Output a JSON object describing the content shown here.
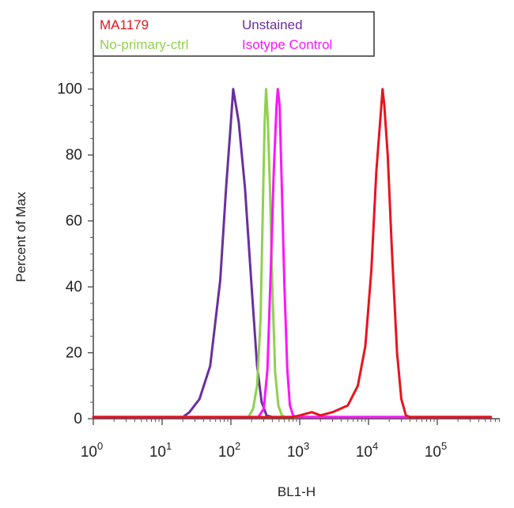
{
  "chart_data": {
    "type": "line",
    "title": "",
    "xlabel": "BL1-H",
    "ylabel": "Percent of Max",
    "x_scale": "log",
    "xlim": [
      1,
      600000
    ],
    "ylim": [
      0,
      110
    ],
    "x_ticks": [
      {
        "value": 1,
        "base": "10",
        "exp": "0"
      },
      {
        "value": 10,
        "base": "10",
        "exp": "1"
      },
      {
        "value": 100,
        "base": "10",
        "exp": "2"
      },
      {
        "value": 1000,
        "base": "10",
        "exp": "3"
      },
      {
        "value": 10000,
        "base": "10",
        "exp": "4"
      },
      {
        "value": 100000,
        "base": "10",
        "exp": "5"
      }
    ],
    "y_ticks": [
      0,
      20,
      40,
      60,
      80,
      100
    ],
    "grid": false,
    "legend_position": "top-left",
    "series": [
      {
        "name": "Unstained",
        "color": "#6a2fa0",
        "points": [
          [
            1,
            0.5
          ],
          [
            20,
            0.5
          ],
          [
            25,
            2
          ],
          [
            35,
            6
          ],
          [
            50,
            16
          ],
          [
            70,
            42
          ],
          [
            85,
            70
          ],
          [
            100,
            90
          ],
          [
            108,
            100
          ],
          [
            130,
            90
          ],
          [
            160,
            70
          ],
          [
            200,
            40
          ],
          [
            240,
            16
          ],
          [
            280,
            5
          ],
          [
            330,
            1
          ],
          [
            400,
            0.5
          ],
          [
            600000,
            0.5
          ]
        ]
      },
      {
        "name": "No-primary-ctrl",
        "color": "#8fd14f",
        "points": [
          [
            1,
            0.5
          ],
          [
            180,
            0.5
          ],
          [
            210,
            3
          ],
          [
            240,
            10
          ],
          [
            270,
            30
          ],
          [
            295,
            70
          ],
          [
            310,
            90
          ],
          [
            325,
            100
          ],
          [
            345,
            90
          ],
          [
            370,
            70
          ],
          [
            400,
            40
          ],
          [
            440,
            14
          ],
          [
            490,
            4
          ],
          [
            550,
            1
          ],
          [
            620,
            0.5
          ],
          [
            600000,
            0.5
          ]
        ]
      },
      {
        "name": "Isotype Control",
        "color": "#ff14ff",
        "points": [
          [
            1,
            0.5
          ],
          [
            250,
            0.5
          ],
          [
            300,
            3
          ],
          [
            340,
            15
          ],
          [
            380,
            45
          ],
          [
            420,
            75
          ],
          [
            460,
            95
          ],
          [
            480,
            100
          ],
          [
            510,
            95
          ],
          [
            550,
            70
          ],
          [
            600,
            40
          ],
          [
            660,
            15
          ],
          [
            720,
            4
          ],
          [
            800,
            1
          ],
          [
            900,
            0.5
          ],
          [
            600000,
            0.5
          ]
        ]
      },
      {
        "name": "MA1179",
        "color": "#e8141c",
        "points": [
          [
            1,
            0.5
          ],
          [
            800,
            0.5
          ],
          [
            1000,
            1
          ],
          [
            1500,
            2
          ],
          [
            2000,
            1
          ],
          [
            3000,
            2
          ],
          [
            5000,
            4
          ],
          [
            7000,
            10
          ],
          [
            9000,
            22
          ],
          [
            11000,
            45
          ],
          [
            13000,
            75
          ],
          [
            15000,
            92
          ],
          [
            16000,
            100
          ],
          [
            17000,
            95
          ],
          [
            19000,
            80
          ],
          [
            22000,
            50
          ],
          [
            26000,
            20
          ],
          [
            30000,
            6
          ],
          [
            35000,
            1
          ],
          [
            40000,
            0.5
          ],
          [
            600000,
            0.5
          ]
        ]
      }
    ]
  },
  "legend": {
    "items": [
      {
        "label": "MA1179",
        "color": "#e8141c"
      },
      {
        "label": "Unstained",
        "color": "#6a2fa0"
      },
      {
        "label": "No-primary-ctrl",
        "color": "#8fd14f"
      },
      {
        "label": "Isotype Control",
        "color": "#ff14ff"
      }
    ]
  }
}
